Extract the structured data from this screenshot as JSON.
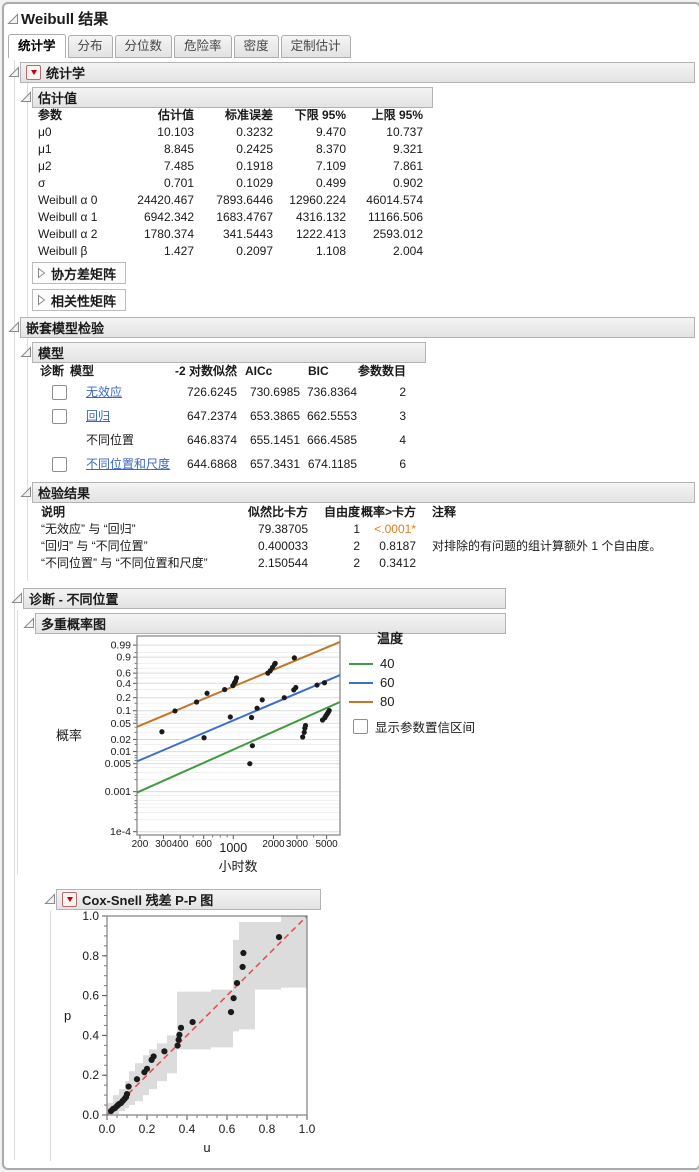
{
  "window_title": "Weibull 结果",
  "tabs": [
    {
      "label": "统计学",
      "active": true
    },
    {
      "label": "分布",
      "active": false
    },
    {
      "label": "分位数",
      "active": false
    },
    {
      "label": "危险率",
      "active": false
    },
    {
      "label": "密度",
      "active": false
    },
    {
      "label": "定制估计",
      "active": false
    }
  ],
  "sections": {
    "statistics": {
      "title": "统计学"
    },
    "estimates": {
      "title": "估计值",
      "columns": [
        "参数",
        "估计值",
        "标准误差",
        "下限 95%",
        "上限 95%"
      ],
      "rows": [
        [
          "μ0",
          "10.103",
          "0.3232",
          "9.470",
          "10.737"
        ],
        [
          "μ1",
          "8.845",
          "0.2425",
          "8.370",
          "9.321"
        ],
        [
          "μ2",
          "7.485",
          "0.1918",
          "7.109",
          "7.861"
        ],
        [
          "σ",
          "0.701",
          "0.1029",
          "0.499",
          "0.902"
        ],
        [
          "Weibull α 0",
          "24420.467",
          "7893.6446",
          "12960.224",
          "46014.574"
        ],
        [
          "Weibull α 1",
          "6942.342",
          "1683.4767",
          "4316.132",
          "11166.506"
        ],
        [
          "Weibull α 2",
          "1780.374",
          "341.5443",
          "1222.413",
          "2593.012"
        ],
        [
          "Weibull β",
          "1.427",
          "0.2097",
          "1.108",
          "2.004"
        ]
      ]
    },
    "covariance": {
      "title": "协方差矩阵"
    },
    "correlation": {
      "title": "相关性矩阵"
    },
    "nested": {
      "title": "嵌套模型检验"
    },
    "model": {
      "title": "模型",
      "columns": [
        "诊断",
        "模型",
        "-2 对数似然",
        "AICc",
        "BIC",
        "参数数目"
      ],
      "rows": [
        {
          "checkbox": true,
          "link": true,
          "label": "无效应",
          "neg2ll": "726.6245",
          "aicc": "730.6985",
          "bic": "736.8364",
          "nparm": "2"
        },
        {
          "checkbox": true,
          "link": true,
          "label": "回归",
          "neg2ll": "647.2374",
          "aicc": "653.3865",
          "bic": "662.5553",
          "nparm": "3"
        },
        {
          "checkbox": false,
          "link": false,
          "label": "不同位置",
          "neg2ll": "646.8374",
          "aicc": "655.1451",
          "bic": "666.4585",
          "nparm": "4"
        },
        {
          "checkbox": true,
          "link": true,
          "label": "不同位置和尺度",
          "neg2ll": "644.6868",
          "aicc": "657.3431",
          "bic": "674.1185",
          "nparm": "6"
        }
      ]
    },
    "tests": {
      "title": "检验结果",
      "columns": [
        "说明",
        "似然比卡方",
        "自由度",
        "概率>卡方",
        "注释"
      ],
      "rows": [
        {
          "desc": "“无效应” 与 “回归”",
          "chisq": "79.38705",
          "df": "1",
          "prob": "<.0001*",
          "highlight": true,
          "note": ""
        },
        {
          "desc": "“回归” 与 “不同位置”",
          "chisq": "0.400033",
          "df": "2",
          "prob": "0.8187",
          "highlight": false,
          "note": "对排除的有问题的组计算额外 1 个自由度。"
        },
        {
          "desc": "“不同位置” 与 “不同位置和尺度”",
          "chisq": "2.150544",
          "df": "2",
          "prob": "0.3412",
          "highlight": false,
          "note": ""
        }
      ]
    },
    "diagnostics": {
      "title": "诊断 - 不同位置"
    },
    "prob_plot_section": {
      "title": "多重概率图",
      "ylabel": "概率",
      "xlabel": "小时数",
      "legend_title": "温度",
      "legend_checkbox": "显示参数置信区间"
    },
    "coxsnell": {
      "title": "Cox-Snell 残差 P-P 图",
      "ylabel": "p",
      "xlabel": "u"
    }
  },
  "chart_data": [
    {
      "id": "prob-plot",
      "type": "scatter",
      "title": "多重概率图",
      "xlabel": "小时数",
      "ylabel": "概率",
      "x_scale": "log",
      "y_scale": "weibull-probability",
      "xlim": [
        190,
        6300
      ],
      "ylim_v": [
        2.05,
        -9.4
      ],
      "x_ticks_labeled": [
        200,
        300,
        400,
        600,
        1000,
        2000,
        3000,
        5000
      ],
      "x_tick_labels": [
        "200",
        "300",
        "400",
        "600",
        "1000",
        "2000",
        "3000",
        "5000"
      ],
      "x_ticks_minor": [
        500,
        700,
        800,
        900,
        4000
      ],
      "y_ticks_labeled": [
        0.99,
        0.9,
        0.6,
        0.4,
        0.2,
        0.1,
        0.05,
        0.02,
        0.01,
        0.005,
        0.001,
        0.0001
      ],
      "y_tick_labels": [
        "0.99",
        "0.9",
        "0.6",
        "0.4",
        "0.2",
        "0.1",
        "0.05",
        "0.02",
        "0.01",
        "0.005",
        "0.001",
        "1e-4"
      ],
      "y_ticks_minor": [
        0.95,
        0.8,
        0.7,
        0.5,
        0.3,
        0.15,
        0.08,
        0.07,
        0.06,
        0.04,
        0.03,
        0.015,
        0.008,
        0.007,
        0.006,
        0.004,
        0.003,
        0.002,
        0.0008,
        0.0006,
        0.0005,
        0.0004,
        0.0003,
        0.0002
      ],
      "grid": true,
      "legend_position": "right",
      "legend_title": "温度",
      "point_color": "#1a1a1a",
      "series": [
        {
          "name": "40",
          "color": "#3f9b41",
          "fit_line": {
            "x": [
              190,
              6300
            ],
            "p": [
              0.00095,
              0.16
            ]
          },
          "points": [
            [
              1330,
              0.005
            ],
            [
              1390,
              0.014
            ],
            [
              3310,
              0.023
            ],
            [
              3400,
              0.03
            ],
            [
              3435,
              0.038
            ],
            [
              3475,
              0.044
            ],
            [
              4660,
              0.06
            ],
            [
              4850,
              0.068
            ],
            [
              4940,
              0.076
            ],
            [
              5040,
              0.083
            ],
            [
              5140,
              0.092
            ],
            [
              5230,
              0.101
            ]
          ]
        },
        {
          "name": "60",
          "color": "#3f6fc4",
          "fit_line": {
            "x": [
              190,
              6300
            ],
            "p": [
              0.0057,
              0.56
            ]
          },
          "points": [
            [
              604,
              0.022
            ],
            [
              950,
              0.071
            ],
            [
              1370,
              0.069
            ],
            [
              1507,
              0.115
            ],
            [
              1647,
              0.179
            ],
            [
              2410,
              0.2
            ],
            [
              2840,
              0.295
            ],
            [
              2940,
              0.33
            ],
            [
              4240,
              0.37
            ],
            [
              4820,
              0.41
            ]
          ]
        },
        {
          "name": "80",
          "color": "#c1762a",
          "fit_line": {
            "x": [
              190,
              6300
            ],
            "p": [
              0.041,
              0.996
            ]
          },
          "points": [
            [
              292,
              0.031
            ],
            [
              366,
              0.099
            ],
            [
              531,
              0.16
            ],
            [
              636,
              0.25
            ],
            [
              862,
              0.3
            ],
            [
              993,
              0.36
            ],
            [
              1022,
              0.41
            ],
            [
              1040,
              0.44
            ],
            [
              1057,
              0.5
            ],
            [
              1815,
              0.6
            ],
            [
              1890,
              0.65
            ],
            [
              1966,
              0.72
            ],
            [
              2036,
              0.78
            ],
            [
              2060,
              0.8
            ],
            [
              2867,
              0.89
            ]
          ]
        }
      ]
    },
    {
      "id": "pp-plot",
      "type": "scatter",
      "title": "Cox-Snell 残差 P-P 图",
      "xlabel": "u",
      "ylabel": "p",
      "xlim": [
        0,
        1
      ],
      "ylim": [
        0,
        1
      ],
      "ticks": [
        0,
        0.2,
        0.4,
        0.6,
        0.8,
        1
      ],
      "tick_labels": [
        "0.0",
        "0.2",
        "0.4",
        "0.6",
        "0.8",
        "1.0"
      ],
      "minor_tick_step": 0.05,
      "diagonal": {
        "style": "dashed",
        "color": "#e35050"
      },
      "band_color": "#dcdcdc",
      "point_color": "#1a1a1a",
      "band_steps": {
        "u": [
          0,
          0.03,
          0.06,
          0.09,
          0.11,
          0.14,
          0.18,
          0.21,
          0.25,
          0.3,
          0.35,
          0.52,
          0.63,
          0.66,
          0.74,
          0.87,
          1.0
        ],
        "upper": [
          0.06,
          0.1,
          0.13,
          0.17,
          0.22,
          0.26,
          0.3,
          0.33,
          0.36,
          0.4,
          0.62,
          0.63,
          0.88,
          0.97,
          0.97,
          1.0
        ],
        "lower": [
          0.0,
          0.005,
          0.02,
          0.035,
          0.05,
          0.07,
          0.1,
          0.13,
          0.17,
          0.21,
          0.33,
          0.34,
          0.42,
          0.43,
          0.63,
          0.64
        ]
      },
      "points": [
        [
          0.02,
          0.02
        ],
        [
          0.03,
          0.03
        ],
        [
          0.04,
          0.035
        ],
        [
          0.05,
          0.045
        ],
        [
          0.055,
          0.05
        ],
        [
          0.06,
          0.055
        ],
        [
          0.07,
          0.06
        ],
        [
          0.078,
          0.07
        ],
        [
          0.087,
          0.08
        ],
        [
          0.095,
          0.09
        ],
        [
          0.1,
          0.105
        ],
        [
          0.108,
          0.143
        ],
        [
          0.15,
          0.18
        ],
        [
          0.187,
          0.215
        ],
        [
          0.2,
          0.232
        ],
        [
          0.223,
          0.277
        ],
        [
          0.233,
          0.294
        ],
        [
          0.287,
          0.32
        ],
        [
          0.353,
          0.349
        ],
        [
          0.358,
          0.378
        ],
        [
          0.362,
          0.403
        ],
        [
          0.37,
          0.438
        ],
        [
          0.428,
          0.467
        ],
        [
          0.62,
          0.517
        ],
        [
          0.633,
          0.587
        ],
        [
          0.65,
          0.663
        ],
        [
          0.678,
          0.744
        ],
        [
          0.682,
          0.814
        ],
        [
          0.86,
          0.894
        ]
      ]
    }
  ]
}
